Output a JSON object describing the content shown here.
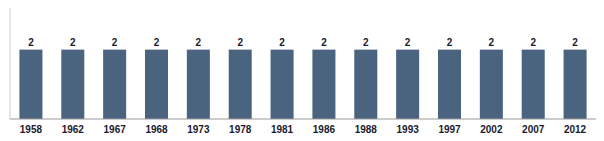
{
  "chart_data": {
    "type": "bar",
    "categories": [
      "1958",
      "1962",
      "1967",
      "1968",
      "1973",
      "1978",
      "1981",
      "1986",
      "1988",
      "1993",
      "1997",
      "2002",
      "2007",
      "2012"
    ],
    "values": [
      2,
      2,
      2,
      2,
      2,
      2,
      2,
      2,
      2,
      2,
      2,
      2,
      2,
      2
    ],
    "color": "#4a6480",
    "ylim": [
      0,
      3.2
    ],
    "data_labels": true,
    "tick_labels": "x"
  }
}
